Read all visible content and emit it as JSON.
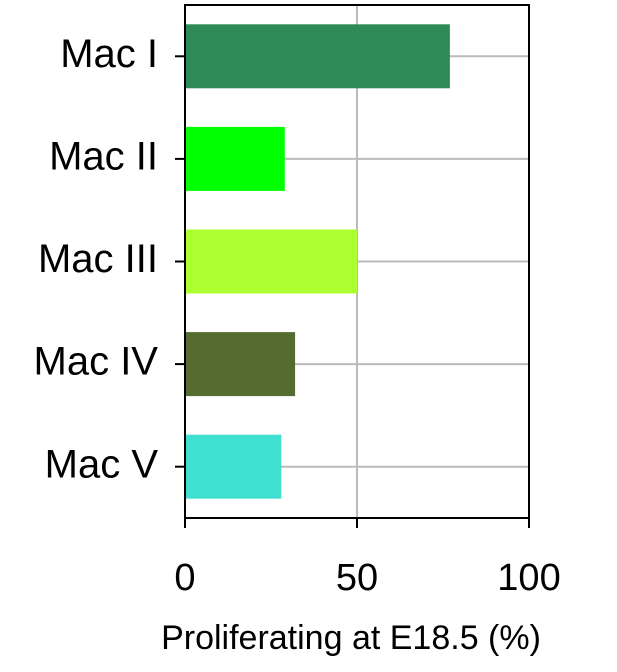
{
  "chart_data": {
    "type": "hbar",
    "x_label": "Proliferating at E18.5 (%)",
    "categories": [
      "Mac I",
      "Mac II",
      "Mac III",
      "Mac IV",
      "Mac V"
    ],
    "values": [
      77,
      29,
      50,
      32,
      28
    ],
    "colors": [
      "#2e8b57",
      "#00ff00",
      "#adff2f",
      "#556b2f",
      "#40e0d0"
    ],
    "xlim": [
      0,
      100
    ],
    "xticks": [
      0,
      50,
      100
    ],
    "grid": true
  }
}
